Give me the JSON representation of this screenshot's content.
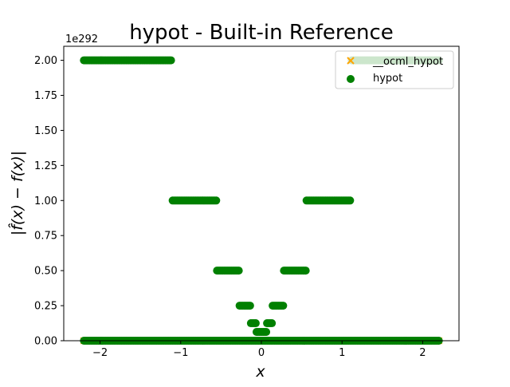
{
  "chart_data": {
    "type": "scatter",
    "title": "hypot - Built-in Reference",
    "xlabel": "x",
    "ylabel": "|f̂(x) − f(x)|",
    "y_offset_text": "1e292",
    "xlim": [
      -2.45,
      2.45
    ],
    "ylim": [
      0,
      2.1
    ],
    "x_ticks": [
      -2,
      -1,
      0,
      1,
      2
    ],
    "x_tick_labels": [
      "−2",
      "−1",
      "0",
      "1",
      "2"
    ],
    "y_ticks": [
      0,
      0.25,
      0.5,
      0.75,
      1.0,
      1.25,
      1.5,
      1.75,
      2.0
    ],
    "y_tick_labels": [
      "0.00",
      "0.25",
      "0.50",
      "0.75",
      "1.00",
      "1.25",
      "1.50",
      "1.75",
      "2.00"
    ],
    "grid": false,
    "legend_position": "top-right",
    "colors": {
      "ocml": "#FFA500",
      "hypot": "#008000"
    },
    "series": [
      {
        "name": "__ocml_hypot",
        "marker": "x",
        "segments": [
          {
            "x_start": -2.2,
            "x_end": 2.2,
            "y": 0
          }
        ]
      },
      {
        "name": "hypot",
        "marker": "o",
        "segments": [
          {
            "x_start": -2.2,
            "x_end": 2.2,
            "y": 0
          },
          {
            "x_start": -2.2,
            "x_end": -1.12,
            "y": 2.0
          },
          {
            "x_start": 1.12,
            "x_end": 2.2,
            "y": 2.0
          },
          {
            "x_start": -1.1,
            "x_end": -0.56,
            "y": 1.0
          },
          {
            "x_start": 0.56,
            "x_end": 1.1,
            "y": 1.0
          },
          {
            "x_start": -0.55,
            "x_end": -0.28,
            "y": 0.5
          },
          {
            "x_start": 0.28,
            "x_end": 0.55,
            "y": 0.5
          },
          {
            "x_start": -0.27,
            "x_end": -0.14,
            "y": 0.25
          },
          {
            "x_start": 0.14,
            "x_end": 0.27,
            "y": 0.25
          },
          {
            "x_start": -0.13,
            "x_end": -0.07,
            "y": 0.125
          },
          {
            "x_start": 0.07,
            "x_end": 0.13,
            "y": 0.125
          },
          {
            "x_start": -0.06,
            "x_end": 0.06,
            "y": 0.0625
          }
        ]
      }
    ]
  }
}
